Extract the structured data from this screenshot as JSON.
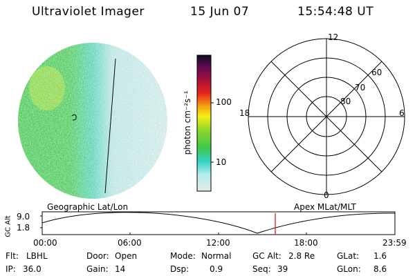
{
  "header": {
    "instrument": "Ultraviolet Imager",
    "date": "15 Jun 07",
    "time": "15:54:48 UT"
  },
  "colorbar": {
    "label": "photon cm⁻²s⁻¹",
    "ticks": [
      "100",
      "10"
    ]
  },
  "polar_plot": {
    "mlt_labels": {
      "top": "12",
      "left": "18",
      "right": "6",
      "bottom": "0"
    },
    "lat_labels": [
      "60",
      "70",
      "80"
    ]
  },
  "orbit_panel": {
    "left_title": "Geographic Lat/Lon",
    "right_title": "Apex  MLat/MLT",
    "axis_label": "GC Alt",
    "y_ticks": [
      "9.0",
      "1.8"
    ],
    "x_ticks": [
      "00:00",
      "06:00",
      "12:00",
      "18:00",
      "23:59"
    ],
    "marker_color": "#d11111"
  },
  "footer": {
    "row1": [
      {
        "key": "Flt:",
        "value": "LBHL"
      },
      {
        "key": "Door:",
        "value": "Open"
      },
      {
        "key": "Mode:",
        "value": "Normal"
      },
      {
        "key": "GC Alt:",
        "value": "2.8 Re"
      },
      {
        "key": "GLat:",
        "value": "1.6"
      }
    ],
    "row2": [
      {
        "key": "IP:",
        "value": "36.0"
      },
      {
        "key": "Gain:",
        "value": "14"
      },
      {
        "key": "Dsp:",
        "value": "0.9"
      },
      {
        "key": "Seq:",
        "value": "39"
      },
      {
        "key": "GLon:",
        "value": "8.6"
      }
    ]
  },
  "colors": {
    "low": "#e6ecec",
    "cyan": "#3fd6d2",
    "green": "#49c93b",
    "yellow_green": "#b8e02a"
  }
}
